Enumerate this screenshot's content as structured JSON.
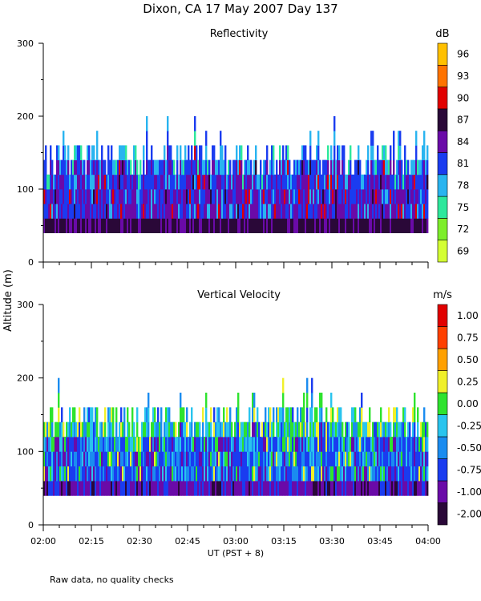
{
  "figure": {
    "title": "Dixon, CA 17 May 2007  Day 137",
    "ylabel": "Altitude (m)",
    "xlabel": "UT  (PST + 8)",
    "footnote": "Raw data, no quality checks"
  },
  "chart_data": [
    {
      "type": "heatmap",
      "title": "Reflectivity",
      "xlabel": "UT  (PST + 8)",
      "ylabel": "Altitude (m)",
      "x_range_minutes": [
        0,
        120
      ],
      "y_range": [
        0,
        300
      ],
      "x_ticks": [
        "02:00",
        "02:15",
        "02:30",
        "02:45",
        "03:00",
        "03:15",
        "03:30",
        "03:45",
        "04:00"
      ],
      "y_ticks": [
        0,
        100,
        200,
        300
      ],
      "colorbar": {
        "unit": "dB",
        "labels": [
          "69",
          "72",
          "75",
          "78",
          "81",
          "84",
          "87",
          "90",
          "93",
          "96"
        ],
        "colors": [
          "#d4ff33",
          "#7dee2a",
          "#2de89c",
          "#29b4f0",
          "#1a3cf0",
          "#6a0aa8",
          "#2a0838",
          "#e10000",
          "#ff7300",
          "#ffc000"
        ]
      },
      "data_summary": {
        "echo_base_m": 40,
        "typical_top_m": 140,
        "max_top_m": 200,
        "dominant_range_dB": [
          78,
          87
        ]
      }
    },
    {
      "type": "heatmap",
      "title": "Vertical Velocity",
      "xlabel": "UT  (PST + 8)",
      "ylabel": "Altitude (m)",
      "x_range_minutes": [
        0,
        120
      ],
      "y_range": [
        0,
        300
      ],
      "x_ticks": [
        "02:00",
        "02:15",
        "02:30",
        "02:45",
        "03:00",
        "03:15",
        "03:30",
        "03:45",
        "04:00"
      ],
      "y_ticks": [
        0,
        100,
        200,
        300
      ],
      "colorbar": {
        "unit": "m/s",
        "labels": [
          "-2.00",
          "-1.00",
          "-0.75",
          "-0.50",
          "-0.25",
          "0.00",
          "0.25",
          "0.50",
          "0.75",
          "1.00"
        ],
        "colors": [
          "#2a0838",
          "#6a0aa8",
          "#1a3cf0",
          "#1a8cf0",
          "#29c4ee",
          "#2ee32e",
          "#f0f02a",
          "#ffa000",
          "#ff4000",
          "#e10000"
        ]
      },
      "data_summary": {
        "echo_base_m": 40,
        "typical_top_m": 140,
        "max_top_m": 200,
        "dominant_range_m_s": [
          -1.0,
          -0.25
        ]
      }
    }
  ]
}
